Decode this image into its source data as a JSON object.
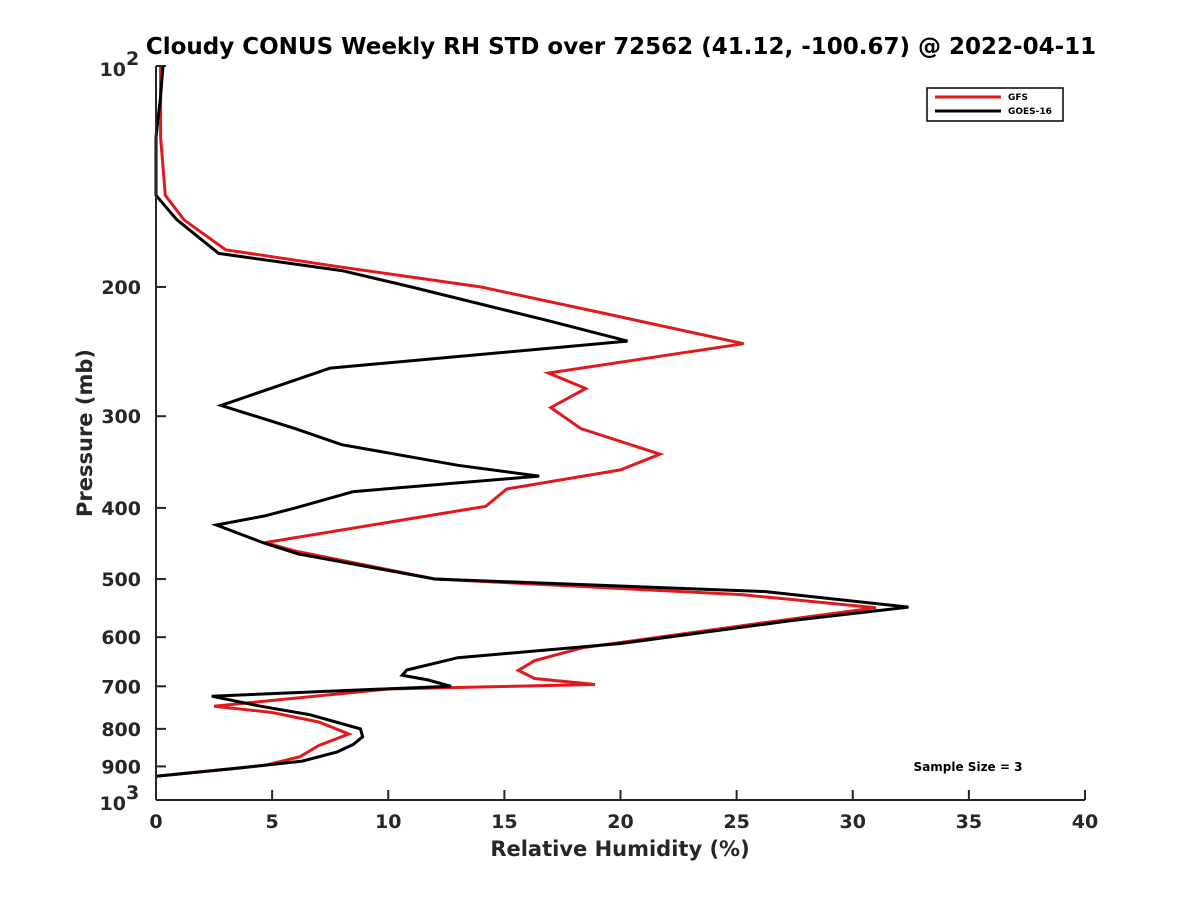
{
  "chart_data": {
    "type": "line",
    "title": "Cloudy CONUS Weekly RH STD over 72562 (41.12, -100.67) @ 2022-04-11",
    "xlabel": "Relative Humidity (%)",
    "ylabel": "Pressure (mb)",
    "xlim": [
      0,
      40
    ],
    "ylim": [
      100,
      1000
    ],
    "y_scale": "log",
    "y_reversed": true,
    "grid": false,
    "legend_position": "top-right",
    "x_ticks": [
      "0",
      "5",
      "10",
      "15",
      "20",
      "25",
      "30",
      "35",
      "40"
    ],
    "y_ticks": [
      {
        "value": 200,
        "label": "200"
      },
      {
        "value": 300,
        "label": "300"
      },
      {
        "value": 400,
        "label": "400"
      },
      {
        "value": 500,
        "label": "500"
      },
      {
        "value": 600,
        "label": "600"
      },
      {
        "value": 700,
        "label": "700"
      },
      {
        "value": 800,
        "label": "800"
      },
      {
        "value": 900,
        "label": "900"
      }
    ],
    "y_end_labels": [
      {
        "value": 100,
        "base": "10",
        "exp": "2"
      },
      {
        "value": 1000,
        "base": "10",
        "exp": "3"
      }
    ],
    "annotation": "Sample Size = 3",
    "series": [
      {
        "name": "GFS",
        "color": "#e0191c",
        "points": [
          [
            0.2,
            100
          ],
          [
            0.2,
            125
          ],
          [
            0.4,
            150
          ],
          [
            1.2,
            162
          ],
          [
            3.0,
            178
          ],
          [
            8.0,
            188
          ],
          [
            14.0,
            200
          ],
          [
            19.5,
            218
          ],
          [
            25.3,
            239
          ],
          [
            16.9,
            262
          ],
          [
            18.5,
            275
          ],
          [
            17.0,
            292
          ],
          [
            18.3,
            312
          ],
          [
            21.7,
            338
          ],
          [
            20.0,
            355
          ],
          [
            15.1,
            377
          ],
          [
            14.2,
            398
          ],
          [
            4.7,
            446
          ],
          [
            6.0,
            458
          ],
          [
            12.0,
            500
          ],
          [
            25.2,
            525
          ],
          [
            31.0,
            547
          ],
          [
            25.9,
            575
          ],
          [
            18.4,
            620
          ],
          [
            16.3,
            646
          ],
          [
            15.6,
            666
          ],
          [
            16.3,
            683
          ],
          [
            18.9,
            696
          ],
          [
            10.0,
            706
          ],
          [
            2.5,
            745
          ],
          [
            5.0,
            760
          ],
          [
            7.0,
            783
          ],
          [
            8.3,
            813
          ],
          [
            7.0,
            843
          ],
          [
            6.2,
            873
          ],
          [
            4.7,
            897
          ],
          [
            0.0,
            928
          ]
        ]
      },
      {
        "name": "GOES-16",
        "color": "#000000",
        "points": [
          [
            0.3,
            100
          ],
          [
            0.2,
            110
          ],
          [
            0.0,
            125
          ],
          [
            0.0,
            150
          ],
          [
            0.9,
            162
          ],
          [
            2.7,
            180
          ],
          [
            8.0,
            190
          ],
          [
            11.0,
            200
          ],
          [
            16.8,
            222
          ],
          [
            20.3,
            237
          ],
          [
            7.5,
            258
          ],
          [
            2.8,
            290
          ],
          [
            6.0,
            312
          ],
          [
            8.0,
            328
          ],
          [
            13.0,
            350
          ],
          [
            16.5,
            362
          ],
          [
            8.5,
            380
          ],
          [
            6.0,
            400
          ],
          [
            4.7,
            410
          ],
          [
            2.6,
            422
          ],
          [
            4.6,
            446
          ],
          [
            6.1,
            462
          ],
          [
            12.0,
            500
          ],
          [
            26.2,
            520
          ],
          [
            32.4,
            546
          ],
          [
            27.3,
            570
          ],
          [
            22.9,
            595
          ],
          [
            20.0,
            612
          ],
          [
            13.0,
            640
          ],
          [
            10.8,
            665
          ],
          [
            10.6,
            676
          ],
          [
            11.7,
            686
          ],
          [
            12.7,
            700
          ],
          [
            10.2,
            705
          ],
          [
            2.4,
            722
          ],
          [
            4.5,
            745
          ],
          [
            6.6,
            765
          ],
          [
            8.8,
            800
          ],
          [
            8.9,
            820
          ],
          [
            8.5,
            840
          ],
          [
            7.8,
            860
          ],
          [
            6.3,
            885
          ],
          [
            3.5,
            905
          ],
          [
            0.0,
            928
          ]
        ]
      }
    ]
  }
}
